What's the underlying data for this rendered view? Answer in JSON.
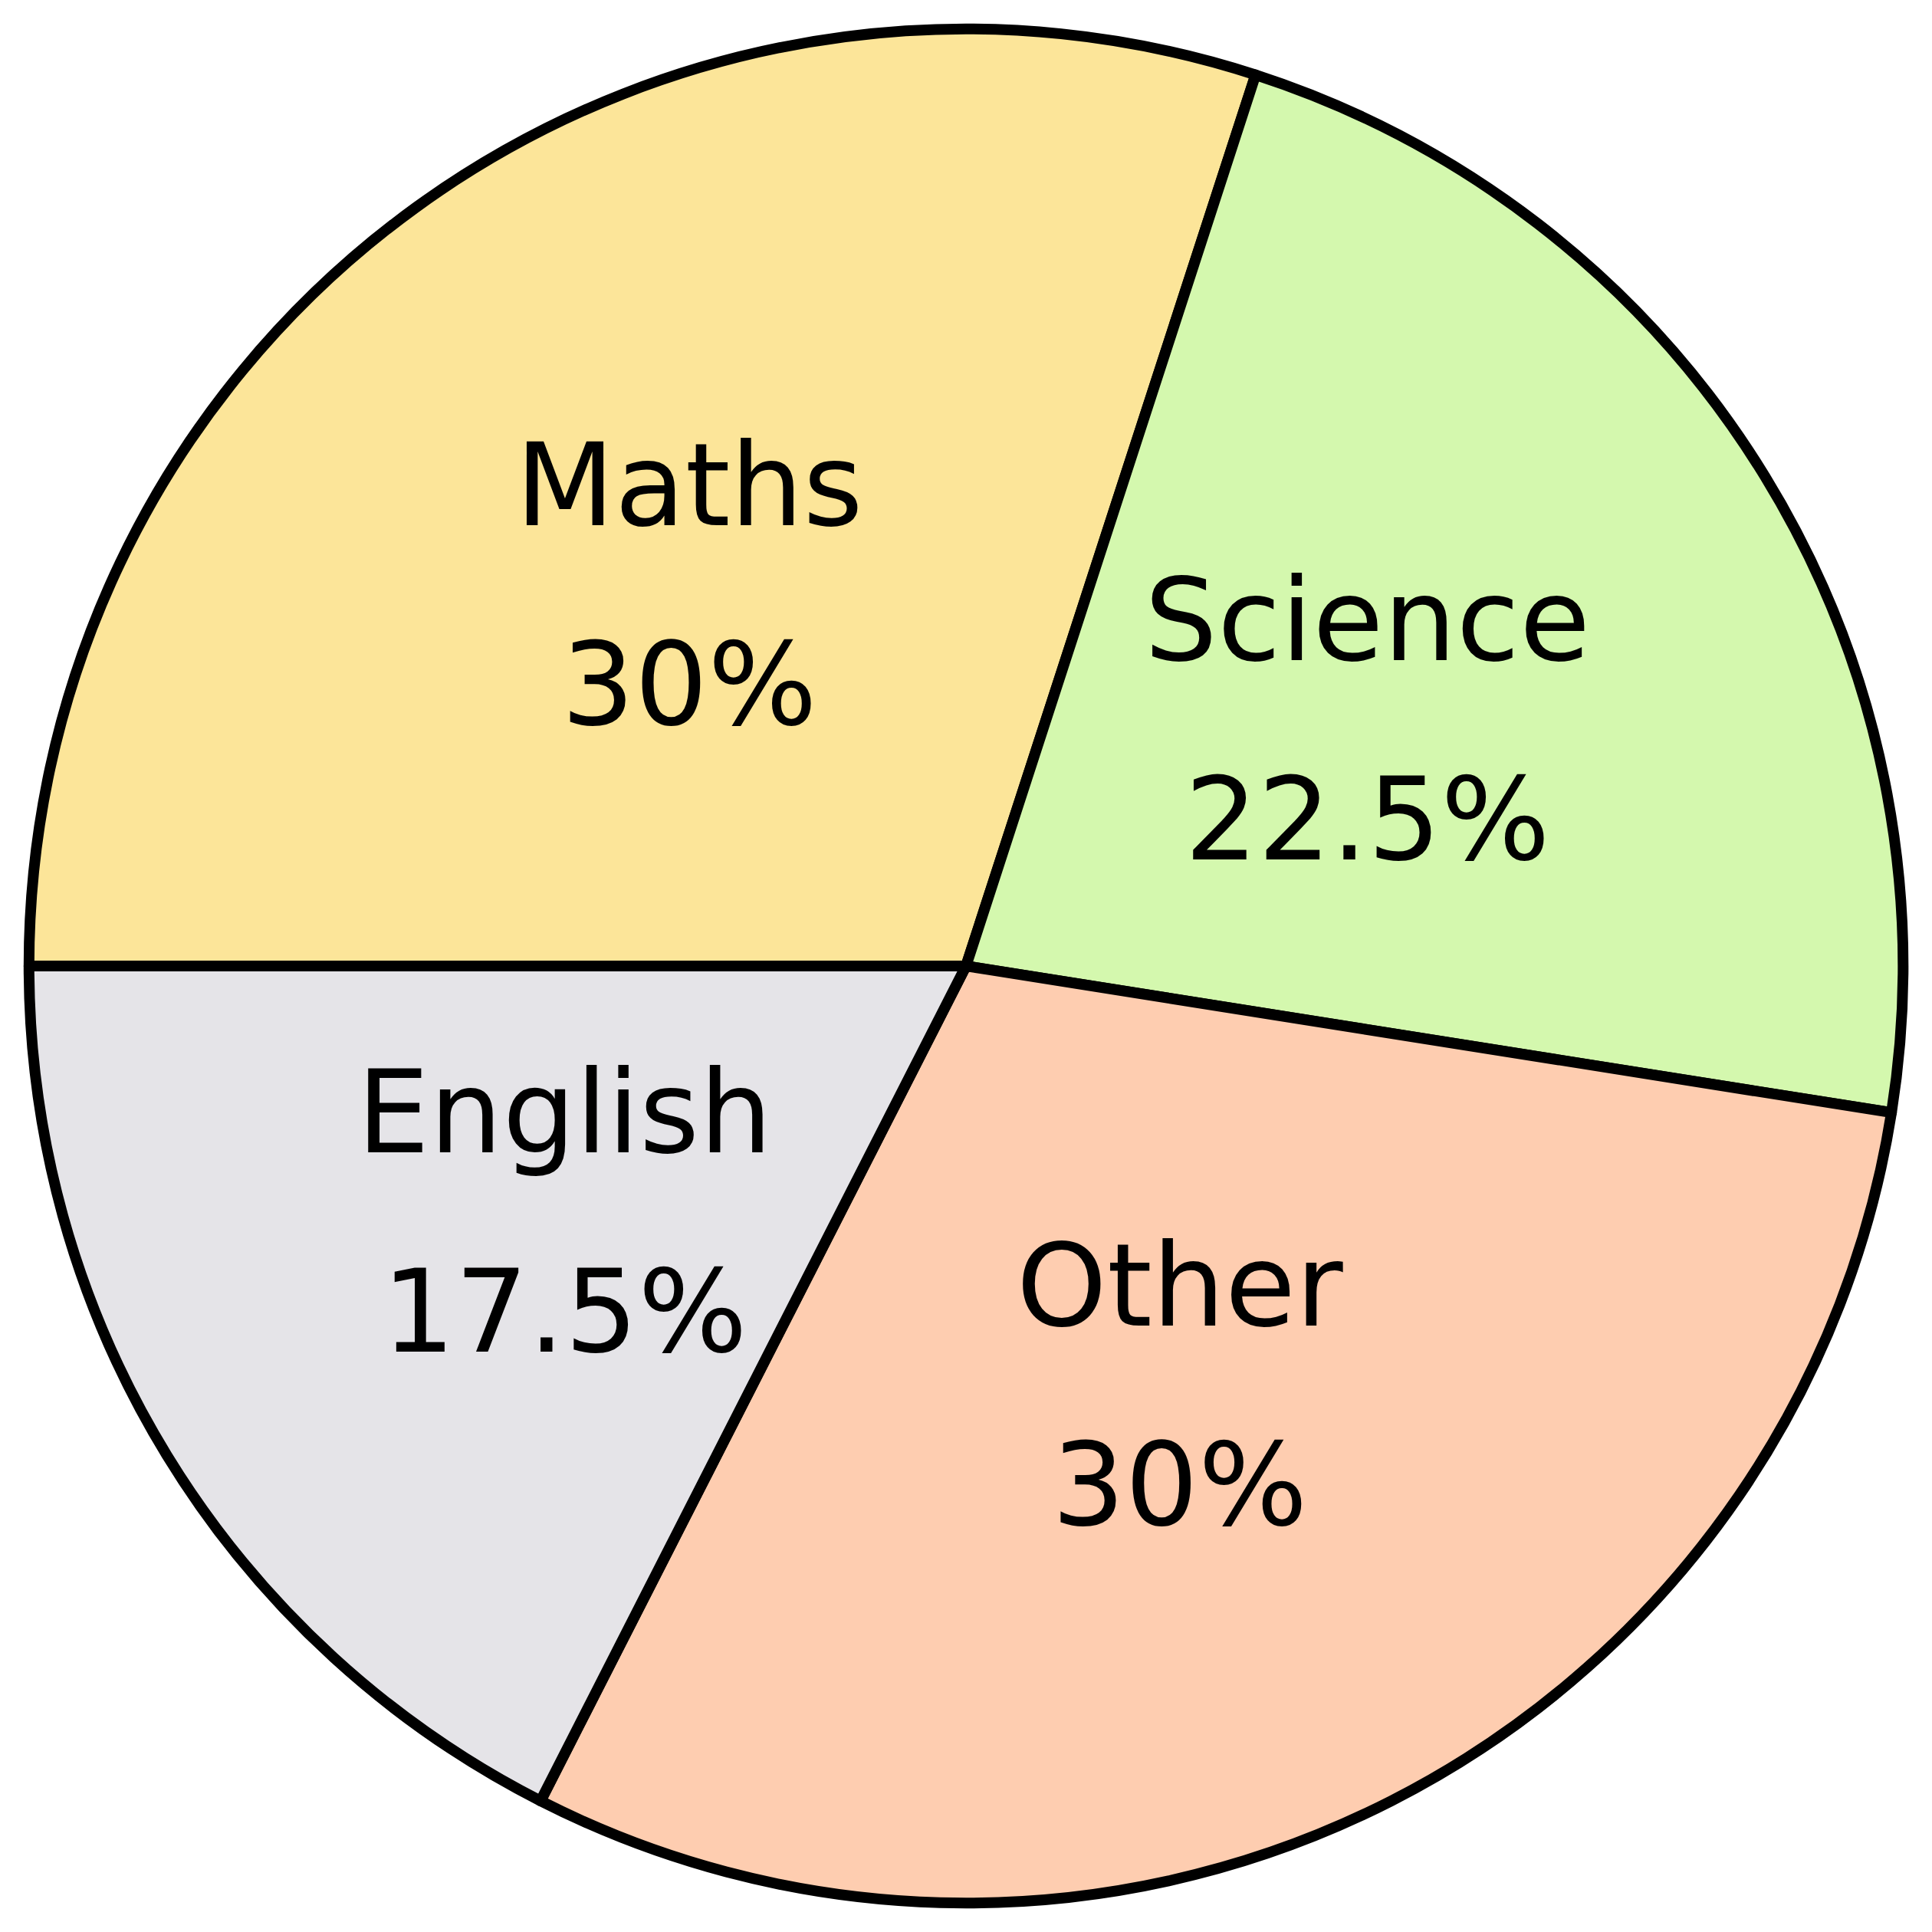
{
  "chart_data": {
    "type": "pie",
    "categories": [
      "Maths",
      "Science",
      "Other",
      "English"
    ],
    "values": [
      30,
      22.5,
      30,
      17.5
    ],
    "value_labels": [
      "30%",
      "22.5%",
      "30%",
      "17.5%"
    ],
    "colors": [
      "#fce599",
      "#d4f8ae",
      "#fecdb0",
      "#e5e4e8"
    ],
    "legend": false
  }
}
